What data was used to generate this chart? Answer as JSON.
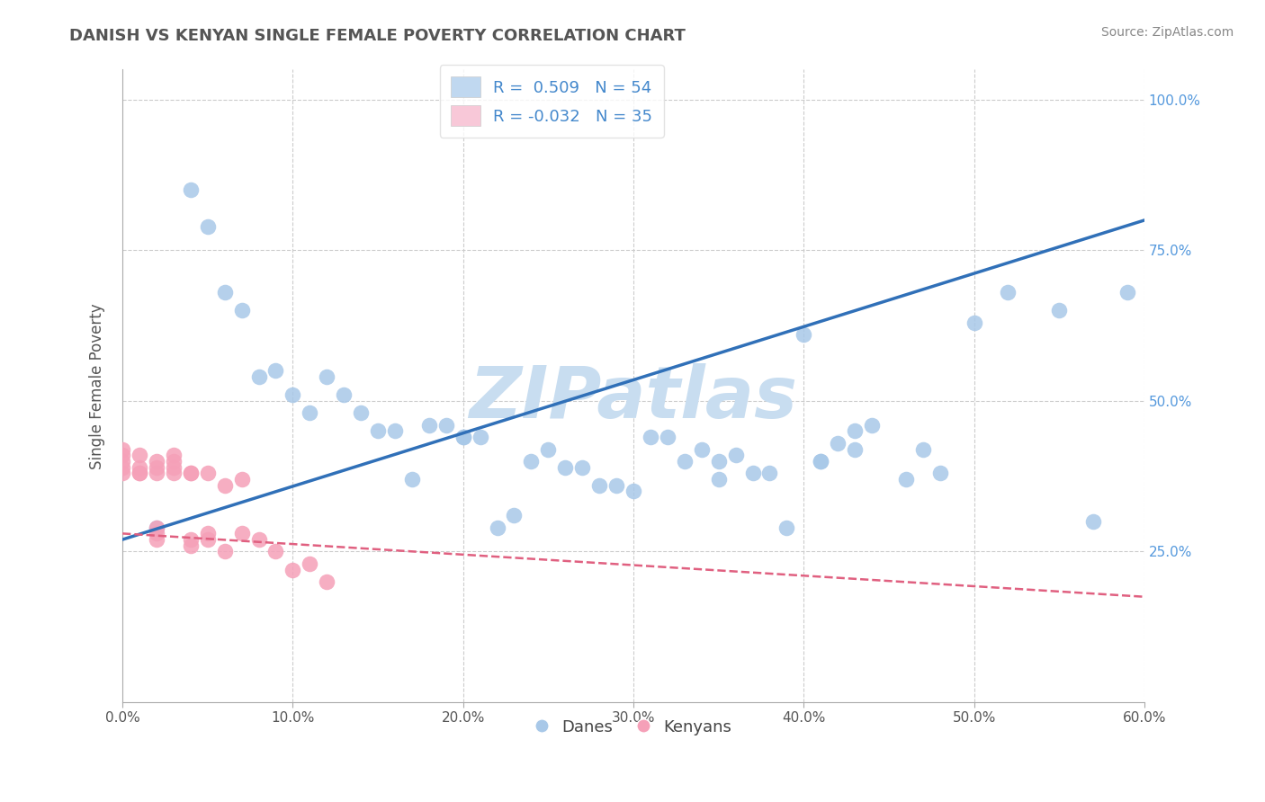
{
  "title": "DANISH VS KENYAN SINGLE FEMALE POVERTY CORRELATION CHART",
  "source": "Source: ZipAtlas.com",
  "ylabel": "Single Female Poverty",
  "xlim": [
    0.0,
    0.6
  ],
  "ylim": [
    0.0,
    1.05
  ],
  "xticks": [
    0.0,
    0.1,
    0.2,
    0.3,
    0.4,
    0.5,
    0.6
  ],
  "xtick_labels": [
    "0.0%",
    "10.0%",
    "20.0%",
    "30.0%",
    "40.0%",
    "50.0%",
    "60.0%"
  ],
  "yticks": [
    0.25,
    0.5,
    0.75,
    1.0
  ],
  "ytick_labels": [
    "25.0%",
    "50.0%",
    "75.0%",
    "100.0%"
  ],
  "danes_R": "0.509",
  "danes_N": "54",
  "kenyans_R": "-0.032",
  "kenyans_N": "35",
  "blue_scatter_color": "#a8c8e8",
  "pink_scatter_color": "#f5a0b8",
  "blue_line_color": "#3070b8",
  "pink_line_color": "#e06080",
  "blue_legend_color": "#c0d8f0",
  "pink_legend_color": "#f8c8d8",
  "legend_text_color": "#4488cc",
  "watermark": "ZIPatlas",
  "watermark_color": "#c8ddf0",
  "background_color": "#ffffff",
  "grid_color": "#cccccc",
  "title_color": "#555555",
  "source_color": "#888888",
  "ylabel_color": "#555555",
  "tick_label_color_x": "#555555",
  "tick_label_color_y": "#5599dd",
  "danes_x": [
    0.02,
    0.04,
    0.05,
    0.06,
    0.07,
    0.08,
    0.09,
    0.1,
    0.11,
    0.12,
    0.13,
    0.14,
    0.15,
    0.16,
    0.17,
    0.18,
    0.19,
    0.2,
    0.2,
    0.21,
    0.22,
    0.23,
    0.24,
    0.25,
    0.26,
    0.27,
    0.28,
    0.29,
    0.3,
    0.31,
    0.32,
    0.33,
    0.34,
    0.35,
    0.35,
    0.36,
    0.37,
    0.38,
    0.39,
    0.4,
    0.41,
    0.41,
    0.42,
    0.43,
    0.43,
    0.44,
    0.46,
    0.47,
    0.48,
    0.5,
    0.52,
    0.55,
    0.57,
    0.59
  ],
  "danes_y": [
    0.29,
    0.85,
    0.79,
    0.68,
    0.65,
    0.54,
    0.55,
    0.51,
    0.48,
    0.54,
    0.51,
    0.48,
    0.45,
    0.45,
    0.37,
    0.46,
    0.46,
    0.44,
    0.44,
    0.44,
    0.29,
    0.31,
    0.4,
    0.42,
    0.39,
    0.39,
    0.36,
    0.36,
    0.35,
    0.44,
    0.44,
    0.4,
    0.42,
    0.4,
    0.37,
    0.41,
    0.38,
    0.38,
    0.29,
    0.61,
    0.4,
    0.4,
    0.43,
    0.42,
    0.45,
    0.46,
    0.37,
    0.42,
    0.38,
    0.63,
    0.68,
    0.65,
    0.3,
    0.68
  ],
  "kenyans_x": [
    0.0,
    0.0,
    0.0,
    0.0,
    0.0,
    0.01,
    0.01,
    0.01,
    0.01,
    0.02,
    0.02,
    0.02,
    0.02,
    0.02,
    0.02,
    0.03,
    0.03,
    0.03,
    0.03,
    0.04,
    0.04,
    0.04,
    0.04,
    0.05,
    0.05,
    0.05,
    0.06,
    0.06,
    0.07,
    0.07,
    0.08,
    0.09,
    0.1,
    0.11,
    0.12
  ],
  "kenyans_y": [
    0.38,
    0.39,
    0.41,
    0.42,
    0.4,
    0.38,
    0.38,
    0.39,
    0.41,
    0.27,
    0.28,
    0.29,
    0.38,
    0.39,
    0.4,
    0.38,
    0.39,
    0.4,
    0.41,
    0.38,
    0.38,
    0.27,
    0.26,
    0.38,
    0.28,
    0.27,
    0.25,
    0.36,
    0.28,
    0.37,
    0.27,
    0.25,
    0.22,
    0.23,
    0.2
  ],
  "danes_line_x0": 0.0,
  "danes_line_y0": 0.27,
  "danes_line_x1": 0.6,
  "danes_line_y1": 0.8,
  "kenyans_line_x0": 0.0,
  "kenyans_line_y0": 0.28,
  "kenyans_line_x1": 0.6,
  "kenyans_line_y1": 0.175
}
